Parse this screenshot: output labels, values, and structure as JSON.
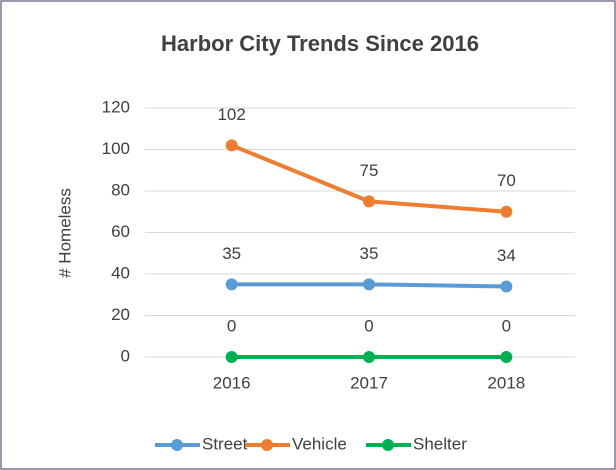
{
  "chart_data": {
    "type": "line",
    "title": "Harbor City Trends Since 2016",
    "y_label": "# Homeless",
    "categories": [
      "2016",
      "2017",
      "2018"
    ],
    "series": [
      {
        "name": "Street",
        "color": "#5b9bd5",
        "values": [
          35,
          35,
          34
        ]
      },
      {
        "name": "Vehicle",
        "color": "#ed7d31",
        "values": [
          102,
          75,
          70
        ]
      },
      {
        "name": "Shelter",
        "color": "#00b050",
        "values": [
          0,
          0,
          0
        ]
      }
    ],
    "ylim": [
      0,
      120
    ],
    "yticks": [
      0,
      20,
      40,
      60,
      80,
      100,
      120
    ],
    "grid": true,
    "legend": "bottom"
  }
}
